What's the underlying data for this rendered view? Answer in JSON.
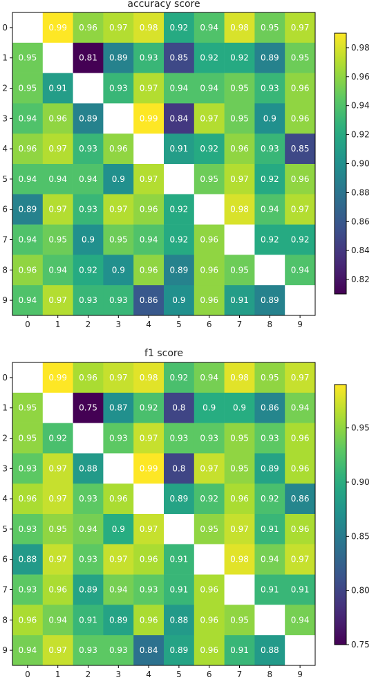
{
  "chart_data": [
    {
      "type": "heatmap",
      "title": "accuracy score",
      "row_labels": [
        "0",
        "1",
        "2",
        "3",
        "4",
        "5",
        "6",
        "7",
        "8",
        "9"
      ],
      "col_labels": [
        "0",
        "1",
        "2",
        "3",
        "4",
        "5",
        "6",
        "7",
        "8",
        "9"
      ],
      "values": [
        [
          null,
          0.99,
          0.96,
          0.97,
          0.98,
          0.92,
          0.94,
          0.98,
          0.95,
          0.97
        ],
        [
          0.95,
          null,
          0.81,
          0.89,
          0.93,
          0.85,
          0.92,
          0.92,
          0.89,
          0.95
        ],
        [
          0.95,
          0.91,
          null,
          0.93,
          0.97,
          0.94,
          0.94,
          0.95,
          0.93,
          0.96
        ],
        [
          0.94,
          0.96,
          0.89,
          null,
          0.99,
          0.84,
          0.97,
          0.95,
          0.9,
          0.96
        ],
        [
          0.96,
          0.97,
          0.93,
          0.96,
          null,
          0.91,
          0.92,
          0.96,
          0.93,
          0.85
        ],
        [
          0.94,
          0.94,
          0.94,
          0.9,
          0.97,
          null,
          0.95,
          0.97,
          0.92,
          0.96
        ],
        [
          0.89,
          0.97,
          0.93,
          0.97,
          0.96,
          0.92,
          null,
          0.98,
          0.94,
          0.97
        ],
        [
          0.94,
          0.95,
          0.9,
          0.95,
          0.94,
          0.92,
          0.96,
          null,
          0.92,
          0.92
        ],
        [
          0.96,
          0.94,
          0.92,
          0.9,
          0.96,
          0.89,
          0.96,
          0.95,
          null,
          0.94
        ],
        [
          0.94,
          0.97,
          0.93,
          0.93,
          0.86,
          0.9,
          0.96,
          0.91,
          0.89,
          null
        ]
      ],
      "colorbar": {
        "min": 0.81,
        "max": 0.99,
        "ticks": [
          "0.82",
          "0.84",
          "0.86",
          "0.88",
          "0.90",
          "0.92",
          "0.94",
          "0.96",
          "0.98"
        ]
      },
      "colormap": "viridis"
    },
    {
      "type": "heatmap",
      "title": "f1 score",
      "row_labels": [
        "0",
        "1",
        "2",
        "3",
        "4",
        "5",
        "6",
        "7",
        "8",
        "9"
      ],
      "col_labels": [
        "0",
        "1",
        "2",
        "3",
        "4",
        "5",
        "6",
        "7",
        "8",
        "9"
      ],
      "values": [
        [
          null,
          0.99,
          0.96,
          0.97,
          0.98,
          0.92,
          0.94,
          0.98,
          0.95,
          0.97
        ],
        [
          0.95,
          null,
          0.75,
          0.87,
          0.92,
          0.8,
          0.9,
          0.9,
          0.86,
          0.94
        ],
        [
          0.95,
          0.92,
          null,
          0.93,
          0.97,
          0.93,
          0.93,
          0.95,
          0.93,
          0.96
        ],
        [
          0.93,
          0.97,
          0.88,
          null,
          0.99,
          0.8,
          0.97,
          0.95,
          0.89,
          0.96
        ],
        [
          0.96,
          0.97,
          0.93,
          0.96,
          null,
          0.89,
          0.92,
          0.96,
          0.92,
          0.86
        ],
        [
          0.93,
          0.95,
          0.94,
          0.9,
          0.97,
          null,
          0.95,
          0.97,
          0.91,
          0.96
        ],
        [
          0.88,
          0.97,
          0.93,
          0.97,
          0.96,
          0.91,
          null,
          0.98,
          0.94,
          0.97
        ],
        [
          0.93,
          0.96,
          0.89,
          0.94,
          0.93,
          0.91,
          0.96,
          null,
          0.91,
          0.91
        ],
        [
          0.96,
          0.94,
          0.91,
          0.89,
          0.96,
          0.88,
          0.96,
          0.95,
          null,
          0.94
        ],
        [
          0.94,
          0.97,
          0.93,
          0.93,
          0.84,
          0.89,
          0.96,
          0.91,
          0.88,
          null
        ]
      ],
      "colorbar": {
        "min": 0.75,
        "max": 0.99,
        "ticks": [
          "0.75",
          "0.80",
          "0.85",
          "0.90",
          "0.95"
        ]
      },
      "colormap": "viridis"
    }
  ]
}
